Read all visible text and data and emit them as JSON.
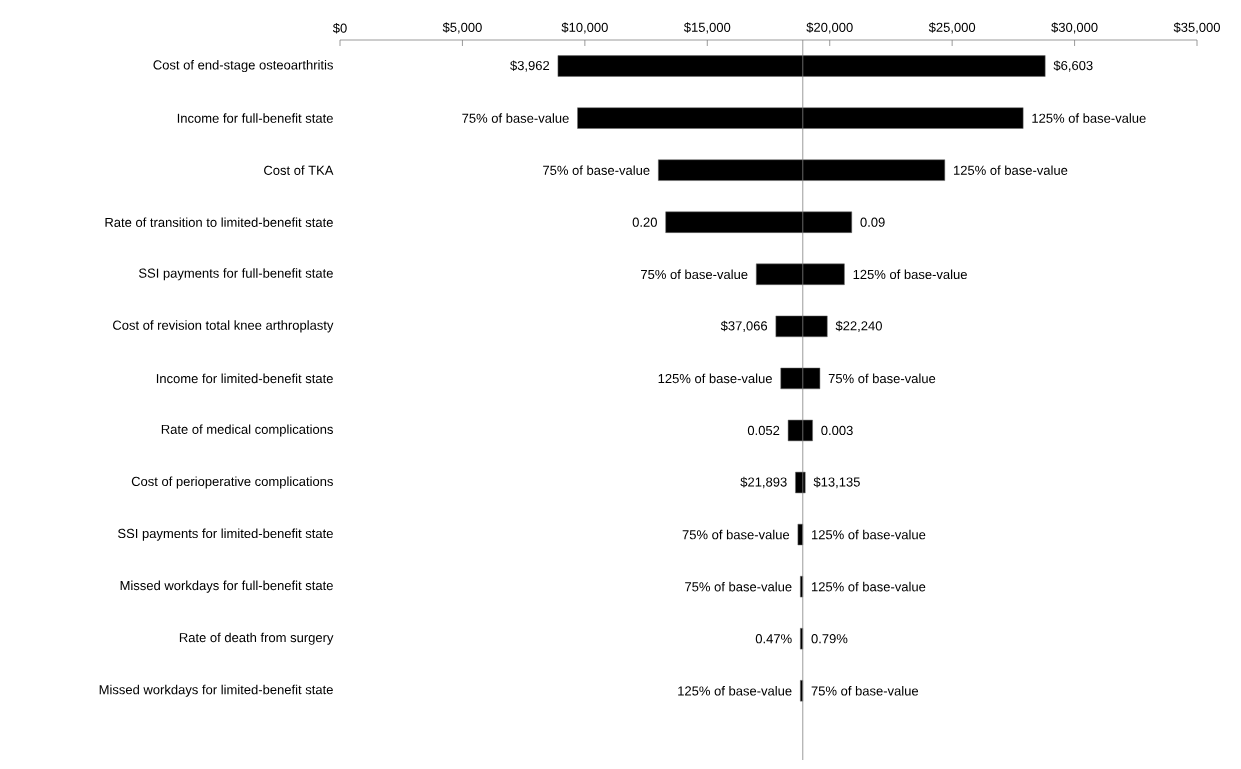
{
  "chart_data": {
    "type": "bar",
    "orientation": "horizontal",
    "categories": [
      "Cost of end-stage osteoarthritis",
      "Income for full-benefit state",
      "Cost of TKA",
      "Rate of transition to limited-benefit state",
      "SSI payments for full-benefit state",
      "Cost of revision total knee arthroplasty",
      "Income for limited-benefit state",
      "Rate of medical complications",
      "Cost of perioperative complications",
      "SSI payments for limited-benefit state",
      "Missed workdays for full-benefit state",
      "Rate of death from surgery",
      "Missed workdays for limited-benefit state"
    ],
    "series": [
      {
        "color": "#000000",
        "base": [
          8900,
          9700,
          13000,
          13300,
          17000,
          17800,
          18000,
          18300,
          18600,
          18700,
          18800,
          18800,
          18800
        ],
        "values": [
          19900,
          18200,
          11700,
          7600,
          3600,
          2100,
          1600,
          1000,
          400,
          200,
          100,
          100,
          100
        ]
      }
    ],
    "xlim": [
      0,
      35000
    ],
    "xticks": [
      {
        "value": 0,
        "label": "$0"
      },
      {
        "value": 5000,
        "label": "$5,000"
      },
      {
        "value": 10000,
        "label": "$10,000"
      },
      {
        "value": 15000,
        "label": "$15,000"
      },
      {
        "value": 20000,
        "label": "$20,000"
      },
      {
        "value": 25000,
        "label": "$25,000"
      },
      {
        "value": 30000,
        "label": "$30,000"
      },
      {
        "value": 35000,
        "label": "$35,000"
      }
    ],
    "ref_lines": [
      {
        "axis": "x",
        "value": 18900,
        "color": "#808080"
      }
    ],
    "annotations": [
      {
        "text": "$3,962",
        "x": 8900,
        "y": "Cost of end-stage osteoarthritis"
      },
      {
        "text": "$6,603",
        "x": 28800,
        "y": "Cost of end-stage osteoarthritis"
      },
      {
        "text": "75% of base-value",
        "x": 9700,
        "y": "Income for full-benefit state"
      },
      {
        "text": "125% of base-value",
        "x": 27900,
        "y": "Income for full-benefit state"
      },
      {
        "text": "75% of base-value",
        "x": 13000,
        "y": "Cost of TKA"
      },
      {
        "text": "125% of base-value",
        "x": 24700,
        "y": "Cost of TKA"
      },
      {
        "text": "0.20",
        "x": 13300,
        "y": "Rate of transition to limited-benefit state"
      },
      {
        "text": "0.09",
        "x": 20900,
        "y": "Rate of transition to limited-benefit state"
      },
      {
        "text": "75% of base-value",
        "x": 17000,
        "y": "SSI payments for full-benefit state"
      },
      {
        "text": "125% of base-value",
        "x": 20600,
        "y": "SSI payments for full-benefit state"
      },
      {
        "text": "$37,066",
        "x": 17800,
        "y": "Cost of revision total knee arthroplasty"
      },
      {
        "text": "$22,240",
        "x": 19900,
        "y": "Cost of revision total knee arthroplasty"
      },
      {
        "text": "125% of base-value",
        "x": 18000,
        "y": "Income for limited-benefit state"
      },
      {
        "text": "75% of base-value",
        "x": 19600,
        "y": "Income for limited-benefit state"
      },
      {
        "text": "0.052",
        "x": 18300,
        "y": "Rate of medical complications"
      },
      {
        "text": "0.003",
        "x": 19300,
        "y": "Rate of medical complications"
      },
      {
        "text": "$21,893",
        "x": 18600,
        "y": "Cost of perioperative complications"
      },
      {
        "text": "$13,135",
        "x": 19000,
        "y": "Cost of perioperative complications"
      },
      {
        "text": "75% of base-value",
        "x": 18700,
        "y": "SSI payments for limited-benefit state"
      },
      {
        "text": "125% of base-value",
        "x": 18900,
        "y": "SSI payments for limited-benefit state"
      },
      {
        "text": "75% of base-value",
        "x": 18800,
        "y": "Missed workdays for full-benefit state"
      },
      {
        "text": "125% of base-value",
        "x": 18900,
        "y": "Missed workdays for full-benefit state"
      },
      {
        "text": "0.47%",
        "x": 18800,
        "y": "Rate of death from surgery"
      },
      {
        "text": "0.79%",
        "x": 18900,
        "y": "Rate of death from surgery"
      },
      {
        "text": "125% of base-value",
        "x": 18800,
        "y": "Missed workdays for limited-benefit state"
      },
      {
        "text": "75% of base-value",
        "x": 18900,
        "y": "Missed workdays for limited-benefit state"
      }
    ],
    "grid": false
  }
}
